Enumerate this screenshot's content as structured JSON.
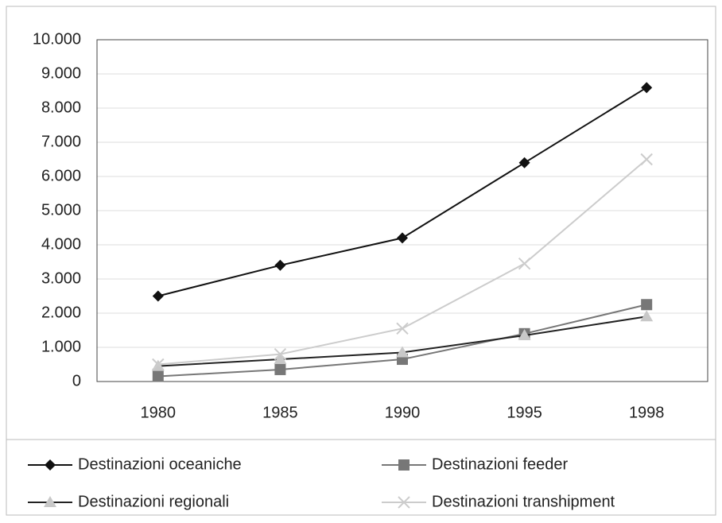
{
  "chart_data": {
    "type": "line",
    "categories": [
      "1980",
      "1985",
      "1990",
      "1995",
      "1998"
    ],
    "series": [
      {
        "name": "Destinazioni oceaniche",
        "color": "#111111",
        "marker": "diamond",
        "values": [
          2500,
          3400,
          4200,
          6400,
          8600
        ]
      },
      {
        "name": "Destinazioni feeder",
        "color": "#777777",
        "marker": "square",
        "values": [
          150,
          350,
          650,
          1400,
          2250
        ]
      },
      {
        "name": "Destinazioni regionali",
        "color": "#222222",
        "marker": "triangle",
        "values": [
          450,
          650,
          850,
          1350,
          1900
        ]
      },
      {
        "name": "Destinazioni transhipment",
        "color": "#cccccc",
        "marker": "x",
        "values": [
          500,
          800,
          1550,
          3450,
          6500
        ]
      }
    ],
    "ylim": [
      0,
      10000
    ],
    "yticks": [
      0,
      {
        "value": 1000,
        "label": "1.000"
      },
      {
        "value": 2000,
        "label": "2.000"
      },
      {
        "value": 3000,
        "label": "3.000"
      },
      {
        "value": 4000,
        "label": "4.000"
      },
      {
        "value": 5000,
        "label": "5.000"
      },
      {
        "value": 6000,
        "label": "6.000"
      },
      {
        "value": 7000,
        "label": "7.000"
      },
      {
        "value": 8000,
        "label": "8.000"
      },
      {
        "value": 9000,
        "label": "9.000"
      },
      {
        "value": 10000,
        "label": "10.000"
      }
    ],
    "grid": true,
    "legend": "bottom"
  }
}
